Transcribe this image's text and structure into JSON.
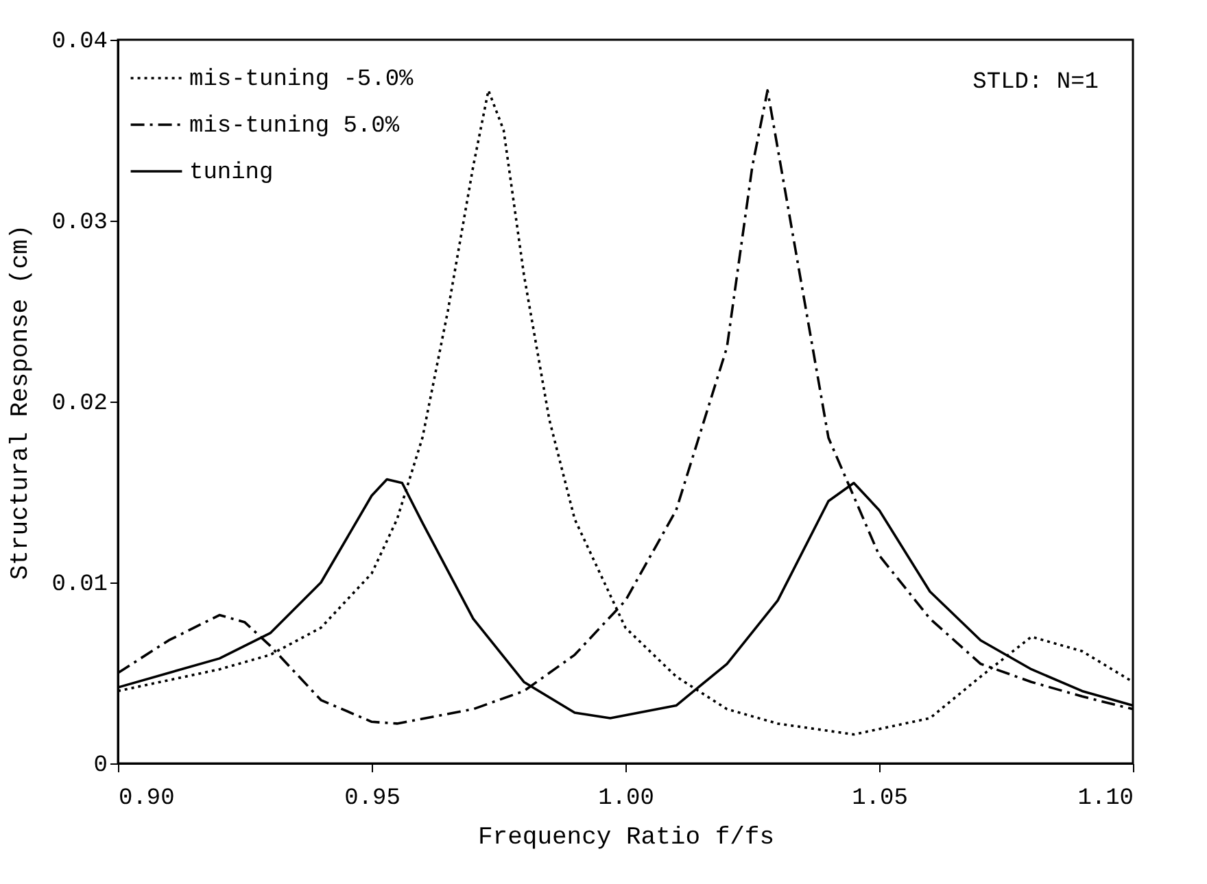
{
  "chart_data": {
    "type": "line",
    "xlabel": "Frequency Ratio f/fs",
    "ylabel": "Structural Response (cm)",
    "annotations": [
      "STLD: N=1"
    ],
    "xlim": [
      0.9,
      1.1
    ],
    "xticks": [
      {
        "value": 0.9,
        "label": "0.90"
      },
      {
        "value": 0.95,
        "label": "0.95"
      },
      {
        "value": 1.0,
        "label": "1.00"
      },
      {
        "value": 1.05,
        "label": "1.05"
      },
      {
        "value": 1.1,
        "label": "1.10"
      }
    ],
    "ylim": [
      0,
      0.04
    ],
    "yticks": [
      0,
      0.01,
      0.02,
      0.03,
      0.04
    ],
    "grid": false,
    "legend": "top left",
    "marker": "none",
    "series": [
      {
        "name": "mis-tuning -5.0%",
        "color": "#000000",
        "line_style": "dotted",
        "x": [
          0.9,
          0.92,
          0.93,
          0.94,
          0.95,
          0.955,
          0.96,
          0.965,
          0.97,
          0.973,
          0.976,
          0.98,
          0.985,
          0.99,
          1.0,
          1.01,
          1.02,
          1.03,
          1.045,
          1.06,
          1.07,
          1.08,
          1.09,
          1.1
        ],
        "values": [
          0.004,
          0.0052,
          0.006,
          0.0075,
          0.0105,
          0.0135,
          0.018,
          0.025,
          0.033,
          0.0372,
          0.035,
          0.027,
          0.019,
          0.0135,
          0.0075,
          0.0048,
          0.003,
          0.0022,
          0.0016,
          0.0025,
          0.0048,
          0.007,
          0.0062,
          0.0045
        ]
      },
      {
        "name": "mis-tuning  5.0%",
        "color": "#000000",
        "line_style": "dashed",
        "x": [
          0.9,
          0.91,
          0.92,
          0.925,
          0.93,
          0.94,
          0.95,
          0.955,
          0.97,
          0.98,
          0.99,
          1.0,
          1.01,
          1.02,
          1.025,
          1.028,
          1.035,
          1.04,
          1.05,
          1.06,
          1.07,
          1.08,
          1.09,
          1.1
        ],
        "values": [
          0.005,
          0.0068,
          0.0082,
          0.0078,
          0.0065,
          0.0035,
          0.0023,
          0.0022,
          0.003,
          0.004,
          0.006,
          0.009,
          0.014,
          0.023,
          0.033,
          0.0372,
          0.026,
          0.018,
          0.0115,
          0.008,
          0.0055,
          0.0045,
          0.0037,
          0.003
        ]
      },
      {
        "name": "tuning",
        "color": "#000000",
        "line_style": "solid",
        "x": [
          0.9,
          0.92,
          0.93,
          0.94,
          0.95,
          0.953,
          0.956,
          0.96,
          0.97,
          0.98,
          0.99,
          0.997,
          1.01,
          1.02,
          1.03,
          1.04,
          1.045,
          1.05,
          1.06,
          1.07,
          1.08,
          1.09,
          1.1
        ],
        "values": [
          0.0042,
          0.0058,
          0.0072,
          0.01,
          0.0148,
          0.0157,
          0.0155,
          0.0133,
          0.008,
          0.0045,
          0.0028,
          0.0025,
          0.0032,
          0.0055,
          0.009,
          0.0145,
          0.0155,
          0.014,
          0.0095,
          0.0068,
          0.0052,
          0.004,
          0.0032
        ]
      }
    ]
  }
}
